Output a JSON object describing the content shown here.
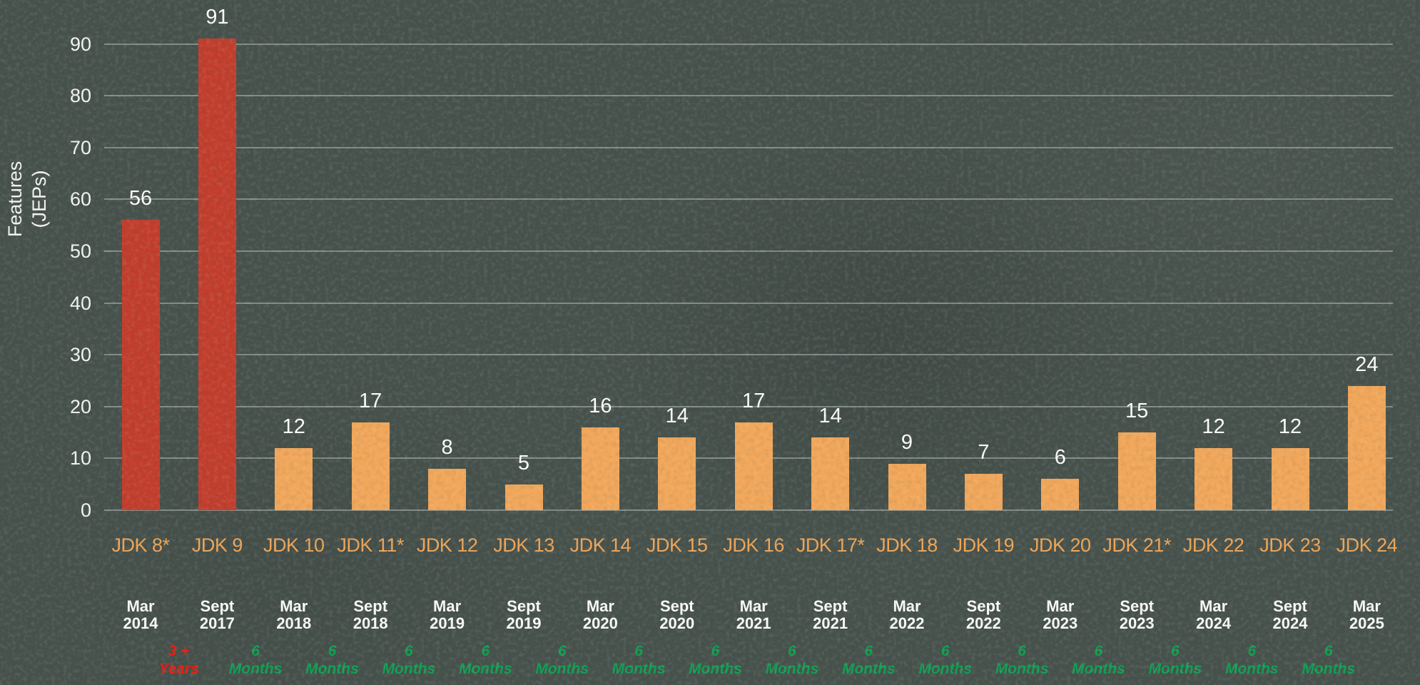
{
  "chart_data": {
    "type": "bar",
    "title": "",
    "ylabel_lines": [
      "Features",
      "(JEPs)"
    ],
    "y_ticks": [
      0,
      10,
      20,
      30,
      40,
      50,
      60,
      70,
      80,
      90
    ],
    "ylim": [
      0,
      95
    ],
    "grid": true,
    "legend": false,
    "bars": [
      {
        "label": "JDK 8*",
        "value": 56,
        "date": [
          "Mar",
          "2014"
        ],
        "color": "red"
      },
      {
        "label": "JDK 9",
        "value": 91,
        "date": [
          "Sept",
          "2017"
        ],
        "color": "red"
      },
      {
        "label": "JDK 10",
        "value": 12,
        "date": [
          "Mar",
          "2018"
        ],
        "color": "orange"
      },
      {
        "label": "JDK 11*",
        "value": 17,
        "date": [
          "Sept",
          "2018"
        ],
        "color": "orange"
      },
      {
        "label": "JDK 12",
        "value": 8,
        "date": [
          "Mar",
          "2019"
        ],
        "color": "orange"
      },
      {
        "label": "JDK 13",
        "value": 5,
        "date": [
          "Sept",
          "2019"
        ],
        "color": "orange"
      },
      {
        "label": "JDK 14",
        "value": 16,
        "date": [
          "Mar",
          "2020"
        ],
        "color": "orange"
      },
      {
        "label": "JDK 15",
        "value": 14,
        "date": [
          "Sept",
          "2020"
        ],
        "color": "orange"
      },
      {
        "label": "JDK 16",
        "value": 17,
        "date": [
          "Mar",
          "2021"
        ],
        "color": "orange"
      },
      {
        "label": "JDK 17*",
        "value": 14,
        "date": [
          "Sept",
          "2021"
        ],
        "color": "orange"
      },
      {
        "label": "JDK 18",
        "value": 9,
        "date": [
          "Mar",
          "2022"
        ],
        "color": "orange"
      },
      {
        "label": "JDK 19",
        "value": 7,
        "date": [
          "Sept",
          "2022"
        ],
        "color": "orange"
      },
      {
        "label": "JDK 20",
        "value": 6,
        "date": [
          "Mar",
          "2023"
        ],
        "color": "orange"
      },
      {
        "label": "JDK 21*",
        "value": 15,
        "date": [
          "Sept",
          "2023"
        ],
        "color": "orange"
      },
      {
        "label": "JDK 22",
        "value": 12,
        "date": [
          "Mar",
          "2024"
        ],
        "color": "orange"
      },
      {
        "label": "JDK 23",
        "value": 12,
        "date": [
          "Sept",
          "2024"
        ],
        "color": "orange"
      },
      {
        "label": "JDK 24",
        "value": 24,
        "date": [
          "Mar",
          "2025"
        ],
        "color": "orange"
      }
    ],
    "gaps": [
      {
        "lines": [
          "3 +",
          "Years"
        ],
        "kind": "long"
      },
      {
        "lines": [
          "6",
          "Months"
        ],
        "kind": "short"
      },
      {
        "lines": [
          "6",
          "Months"
        ],
        "kind": "short"
      },
      {
        "lines": [
          "6",
          "Months"
        ],
        "kind": "short"
      },
      {
        "lines": [
          "6",
          "Months"
        ],
        "kind": "short"
      },
      {
        "lines": [
          "6",
          "Months"
        ],
        "kind": "short"
      },
      {
        "lines": [
          "6",
          "Months"
        ],
        "kind": "short"
      },
      {
        "lines": [
          "6",
          "Months"
        ],
        "kind": "short"
      },
      {
        "lines": [
          "6",
          "Months"
        ],
        "kind": "short"
      },
      {
        "lines": [
          "6",
          "Months"
        ],
        "kind": "short"
      },
      {
        "lines": [
          "6",
          "Months"
        ],
        "kind": "short"
      },
      {
        "lines": [
          "6",
          "Months"
        ],
        "kind": "short"
      },
      {
        "lines": [
          "6",
          "Months"
        ],
        "kind": "short"
      },
      {
        "lines": [
          "6",
          "Months"
        ],
        "kind": "short"
      },
      {
        "lines": [
          "6",
          "Months"
        ],
        "kind": "short"
      },
      {
        "lines": [
          "6",
          "Months"
        ],
        "kind": "short"
      }
    ],
    "colors": {
      "background": "#47514C",
      "bar_red": "#C23D2C",
      "bar_orange": "#F2A75A",
      "grid_line": "rgba(225,231,227,0.40)",
      "value_text": "#FFFFFF",
      "axis_text": "#F4F6F4",
      "version_text": "#F0A556",
      "date_text": "#FCFCFC",
      "gap_short_green": "#0FA052",
      "gap_long_red": "#EC1B0F"
    }
  }
}
